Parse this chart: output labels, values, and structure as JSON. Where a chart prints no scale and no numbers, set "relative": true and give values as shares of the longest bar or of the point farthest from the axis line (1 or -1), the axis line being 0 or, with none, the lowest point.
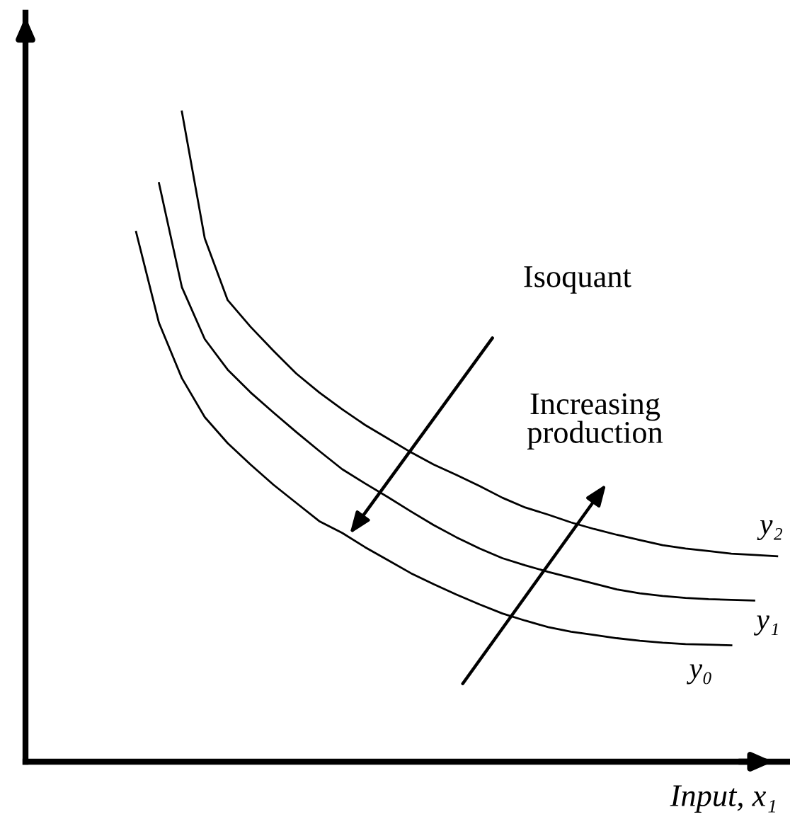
{
  "chart_data": {
    "type": "line",
    "relative": true,
    "xlabel": "Input, x₁",
    "annotations": [
      "Isoquant",
      "Increasing production"
    ],
    "categories": [
      null,
      null,
      null,
      null,
      null,
      null,
      null,
      null,
      null,
      null,
      null,
      null,
      null,
      null,
      null,
      null,
      null,
      null,
      null,
      null,
      null,
      null,
      null,
      null,
      null,
      null,
      null,
      null,
      null
    ],
    "series": [
      {
        "name": "y₀",
        "color": "#000000",
        "values": [
          0.815,
          0.675,
          0.59,
          0.53,
          0.49,
          0.457,
          0.426,
          0.398,
          0.37,
          0.352,
          0.33,
          0.31,
          0.29,
          0.273,
          0.257,
          0.242,
          0.228,
          0.217,
          0.207,
          0.2,
          0.195,
          0.19,
          0.186,
          0.183,
          0.181,
          0.18,
          0.179,
          null,
          null
        ]
      },
      {
        "name": "y₁",
        "color": "#000000",
        "values": [
          null,
          0.89,
          0.73,
          0.65,
          0.603,
          0.568,
          0.537,
          0.507,
          0.478,
          0.45,
          0.428,
          0.407,
          0.385,
          0.364,
          0.345,
          0.328,
          0.313,
          0.302,
          0.292,
          0.283,
          0.274,
          0.265,
          0.259,
          0.255,
          0.252,
          0.25,
          0.249,
          0.248,
          null
        ]
      },
      {
        "name": "y₂",
        "color": "#000000",
        "values": [
          null,
          null,
          1.0,
          0.805,
          0.71,
          0.669,
          0.632,
          0.597,
          0.568,
          0.542,
          0.518,
          0.497,
          0.476,
          0.457,
          0.441,
          0.424,
          0.406,
          0.391,
          0.38,
          0.368,
          0.358,
          0.349,
          0.341,
          0.333,
          0.328,
          0.324,
          0.32,
          0.318,
          0.316
        ]
      }
    ]
  }
}
